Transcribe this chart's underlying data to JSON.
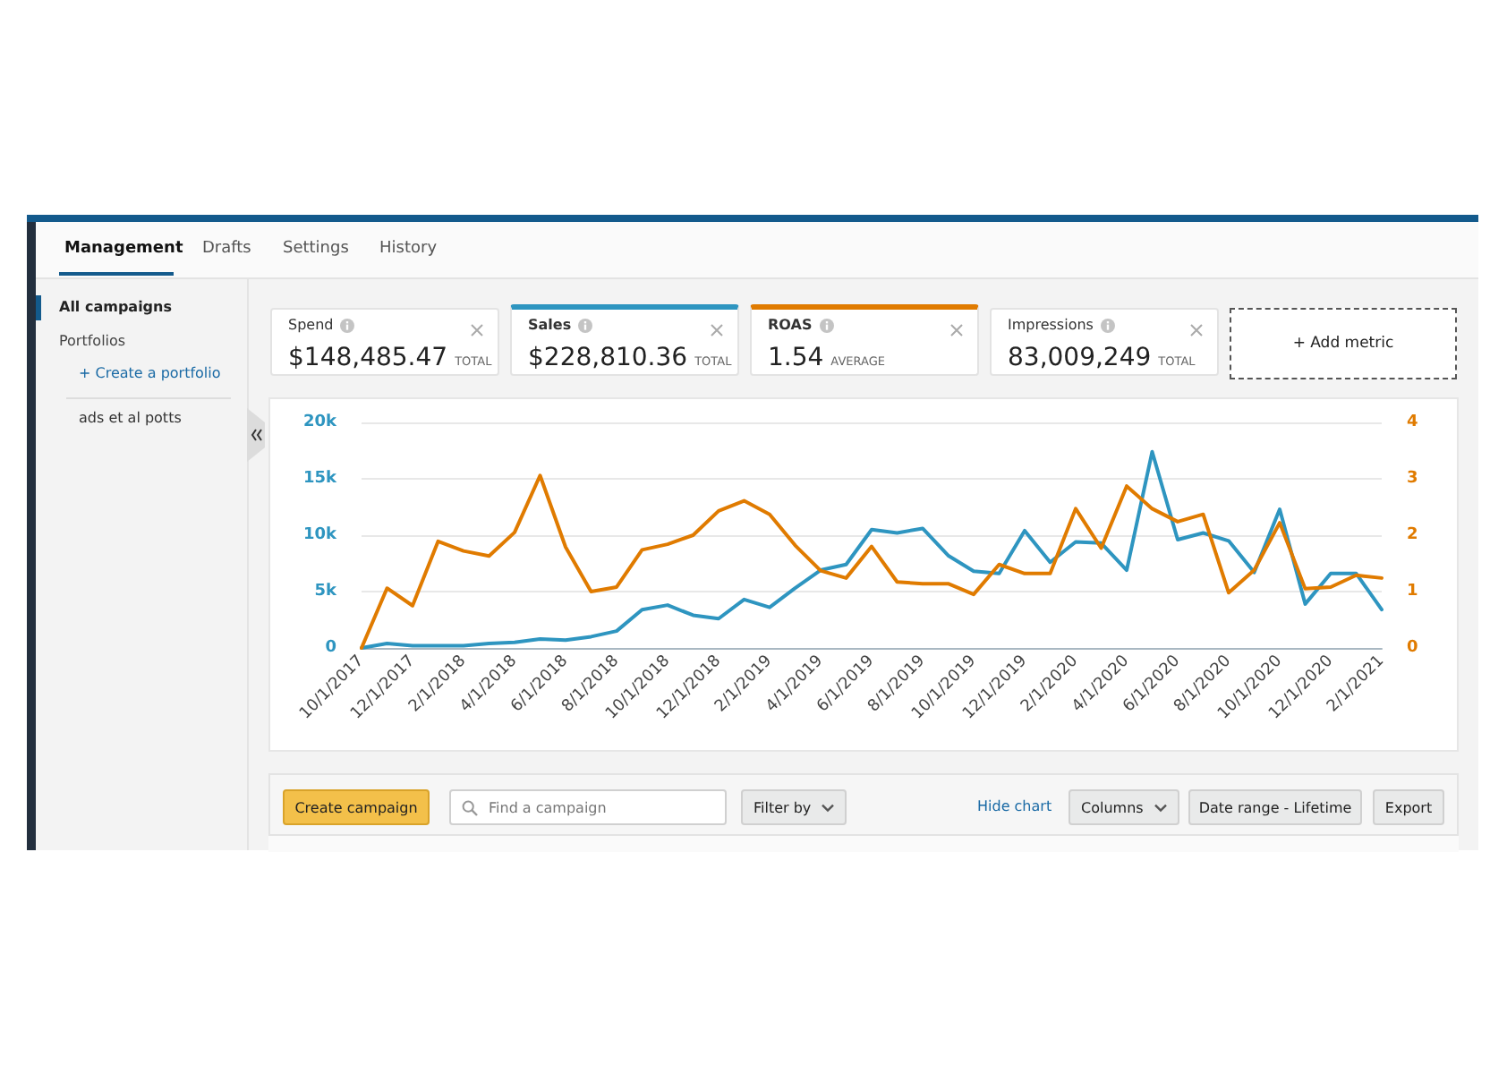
{
  "chart_data": {
    "type": "line",
    "categories": [
      "10/1/2017",
      null,
      "12/1/2017",
      null,
      "2/1/2018",
      null,
      "4/1/2018",
      null,
      "6/1/2018",
      null,
      "8/1/2018",
      null,
      "10/1/2018",
      null,
      "12/1/2018",
      null,
      "2/1/2019",
      null,
      "4/1/2019",
      null,
      "6/1/2019",
      null,
      "8/1/2019",
      null,
      "10/1/2019",
      null,
      "12/1/2019",
      null,
      "2/1/2020",
      null,
      "4/1/2020",
      null,
      "6/1/2020",
      null,
      "8/1/2020",
      null,
      "10/1/2020",
      null,
      "12/1/2020",
      null,
      "2/1/2021"
    ],
    "series": [
      {
        "color": "#2e95c0",
        "values": [
          0,
          400,
          200,
          200,
          200,
          400,
          500,
          800,
          700,
          1000,
          1500,
          3400,
          3800,
          2900,
          2600,
          4300,
          3600,
          5300,
          6900,
          7400,
          10500,
          10200,
          10600,
          8200,
          6800,
          6600,
          10400,
          7600,
          9400,
          9300,
          6900,
          17400,
          9600,
          10200,
          9500,
          6700,
          12300,
          3900,
          6600,
          6600,
          3400
        ]
      },
      {
        "color": "#e07b00",
        "axis": "y2",
        "values": [
          0,
          1.06,
          0.75,
          1.89,
          1.72,
          1.63,
          2.05,
          3.06,
          1.79,
          1.0,
          1.08,
          1.74,
          1.84,
          2.0,
          2.43,
          2.61,
          2.37,
          1.82,
          1.37,
          1.24,
          1.8,
          1.17,
          1.14,
          1.14,
          0.95,
          1.48,
          1.32,
          1.32,
          2.47,
          1.77,
          2.87,
          2.47,
          2.24,
          2.37,
          0.98,
          1.38,
          2.22,
          1.05,
          1.08,
          1.29,
          1.24
        ]
      }
    ],
    "ylim": [
      0,
      20000
    ],
    "yticks": [
      0,
      {
        "value": 5000,
        "label": "5k"
      },
      {
        "value": 10000,
        "label": "10k"
      },
      {
        "value": 15000,
        "label": "15k"
      },
      {
        "value": 20000,
        "label": "20k"
      }
    ],
    "y2lim": [
      0,
      4
    ],
    "y2ticks": [
      0,
      1,
      2,
      3,
      4
    ],
    "grid": "y",
    "marker": "none",
    "annotations": [
      "Management",
      "Drafts",
      "Settings",
      "History",
      "All campaigns",
      "Portfolios",
      "+ Create a portfolio",
      "ads et al potts",
      "Spend",
      "$148,485.47",
      "TOTAL",
      "Sales",
      "$228,810.36",
      "TOTAL",
      "ROAS",
      "1.54",
      "AVERAGE",
      "Impressions",
      "83,009,249",
      "TOTAL",
      "+ Add metric",
      "Create campaign",
      "Find a campaign",
      "Filter by",
      "Hide chart",
      "Columns",
      "Date range - Lifetime",
      "Export"
    ]
  }
}
